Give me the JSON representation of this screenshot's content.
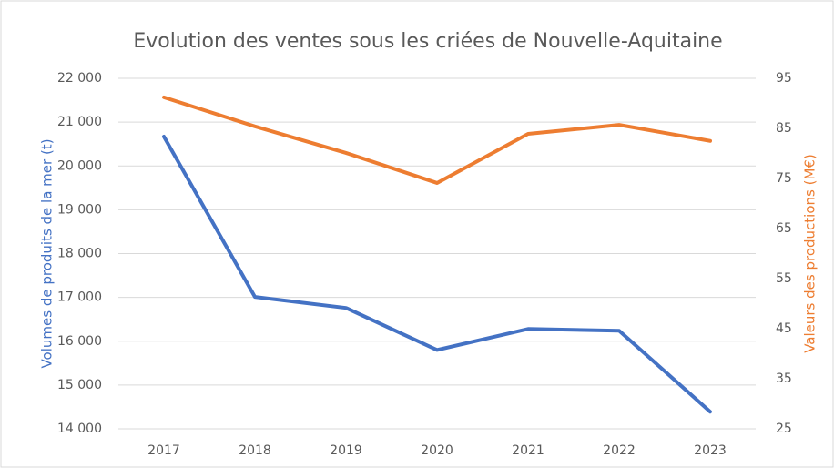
{
  "chart_data": {
    "type": "line",
    "title": "Evolution des ventes sous les criées de Nouvelle-Aquitaine",
    "ylabel": "Volumes de produits de la mer (t)",
    "y2label": "Valeurs des productions (M€)",
    "categories": [
      "2017",
      "2018",
      "2019",
      "2020",
      "2021",
      "2022",
      "2023"
    ],
    "series": [
      {
        "color": "#4472c4",
        "axis": "y",
        "values": [
          20670,
          17010,
          16760,
          15800,
          16280,
          16240,
          14390
        ]
      },
      {
        "color": "#ed7d31",
        "axis": "y2",
        "values": [
          91.2,
          85.4,
          80.1,
          74.1,
          83.9,
          85.7,
          82.5
        ]
      }
    ],
    "ylim": [
      14000,
      22000
    ],
    "yticks": [
      {
        "value": 14000,
        "label": "14 000"
      },
      {
        "value": 15000,
        "label": "15 000"
      },
      {
        "value": 16000,
        "label": "16 000"
      },
      {
        "value": 17000,
        "label": "17 000"
      },
      {
        "value": 18000,
        "label": "18 000"
      },
      {
        "value": 19000,
        "label": "19 000"
      },
      {
        "value": 20000,
        "label": "20 000"
      },
      {
        "value": 21000,
        "label": "21 000"
      },
      {
        "value": 22000,
        "label": "22 000"
      }
    ],
    "y2lim": [
      25,
      95
    ],
    "y2ticks": [
      25,
      35,
      45,
      55,
      65,
      75,
      85,
      95
    ],
    "grid": true
  }
}
